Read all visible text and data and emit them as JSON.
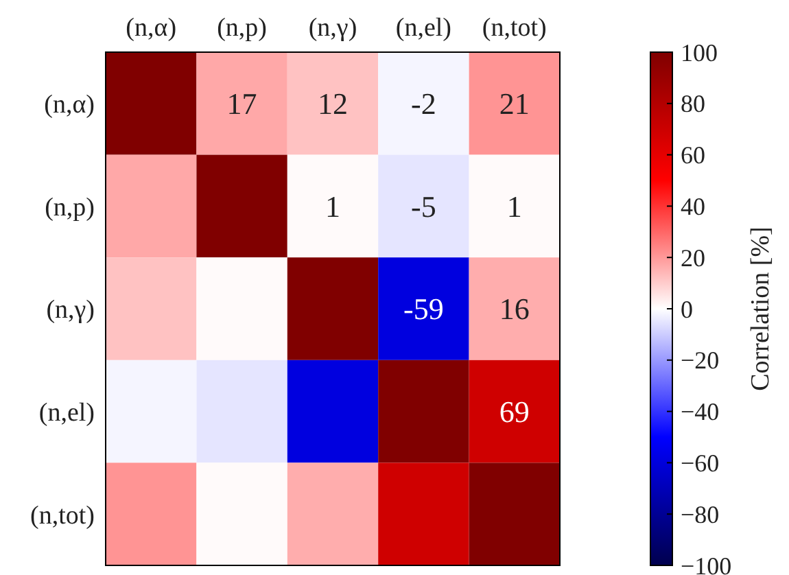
{
  "chart_data": {
    "type": "heatmap",
    "clabel": "Correlation [%]",
    "categories": [
      "(n,α)",
      "(n,p)",
      "(n,γ)",
      "(n,el)",
      "(n,tot)"
    ],
    "y_categories": [
      "(n,α)",
      "(n,p)",
      "(n,γ)",
      "(n,el)",
      "(n,tot)"
    ],
    "cells": [
      [
        100,
        17,
        12,
        -2,
        21
      ],
      [
        17,
        100,
        1,
        -5,
        1
      ],
      [
        12,
        1,
        100,
        -59,
        16
      ],
      [
        -2,
        -5,
        -59,
        100,
        69
      ],
      [
        21,
        1,
        16,
        69,
        100
      ]
    ],
    "cell_labels": [
      [
        null,
        "17",
        "12",
        "-2",
        "21"
      ],
      [
        null,
        null,
        "1",
        "-5",
        "1"
      ],
      [
        null,
        null,
        null,
        "-59",
        "16"
      ],
      [
        null,
        null,
        null,
        null,
        "69"
      ],
      [
        null,
        null,
        null,
        null,
        null
      ]
    ],
    "clim": [
      -100,
      100
    ],
    "cticks": [
      {
        "value": -100,
        "label": "−100"
      },
      {
        "value": -80,
        "label": "−80"
      },
      {
        "value": -60,
        "label": "−60"
      },
      {
        "value": -40,
        "label": "−40"
      },
      {
        "value": -20,
        "label": "−20"
      },
      0,
      20,
      40,
      60,
      80,
      100
    ]
  }
}
